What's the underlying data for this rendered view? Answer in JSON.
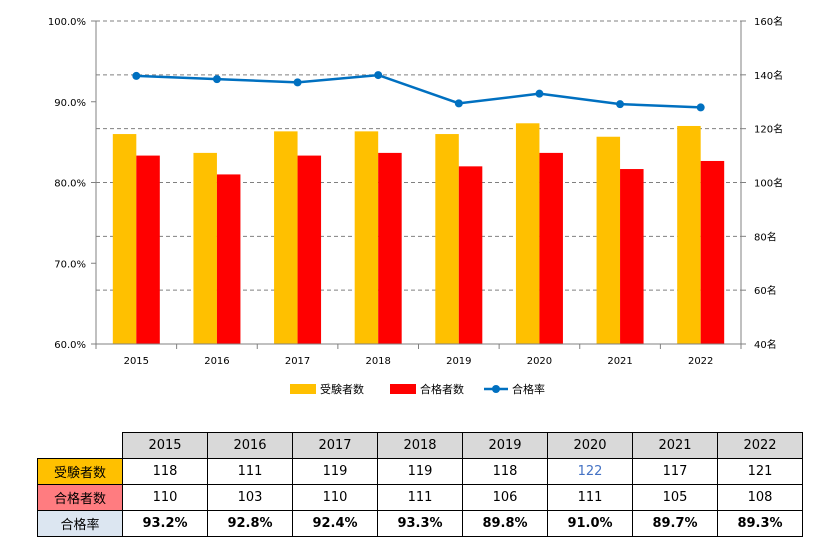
{
  "chart_data": {
    "type": "bar",
    "categories": [
      "2015",
      "2016",
      "2017",
      "2018",
      "2019",
      "2020",
      "2021",
      "2022"
    ],
    "series": [
      {
        "name": "受験者数",
        "type": "bar",
        "axis": "right",
        "color": "#ffc000",
        "values": [
          118,
          111,
          119,
          119,
          118,
          122,
          117,
          121
        ]
      },
      {
        "name": "合格者数",
        "type": "bar",
        "axis": "right",
        "color": "#ff0000",
        "values": [
          110,
          103,
          110,
          111,
          106,
          111,
          105,
          108
        ]
      },
      {
        "name": "合格率",
        "type": "line",
        "axis": "left",
        "color": "#0070c0",
        "values": [
          93.2,
          92.8,
          92.4,
          93.3,
          89.8,
          91.0,
          89.7,
          89.3
        ]
      }
    ],
    "y_left": {
      "range": [
        60,
        100
      ],
      "ticks": [
        "60.0%",
        "70.0%",
        "80.0%",
        "90.0%",
        "100.0%"
      ]
    },
    "y_right": {
      "range": [
        40,
        160
      ],
      "ticks": [
        "40名",
        "60名",
        "80名",
        "100名",
        "120名",
        "140名",
        "160名"
      ]
    },
    "gridlines": true,
    "legend_position": "bottom"
  },
  "table": {
    "headers": [
      "2015",
      "2016",
      "2017",
      "2018",
      "2019",
      "2020",
      "2021",
      "2022"
    ],
    "rows": [
      {
        "label": "受験者数",
        "cls": "row-exam",
        "values": [
          "118",
          "111",
          "119",
          "119",
          "118",
          "122",
          "117",
          "121"
        ]
      },
      {
        "label": "合格者数",
        "cls": "row-pass",
        "values": [
          "110",
          "103",
          "110",
          "111",
          "106",
          "111",
          "105",
          "108"
        ]
      },
      {
        "label": "合格率",
        "cls": "row-rate",
        "values": [
          "93.2%",
          "92.8%",
          "92.4%",
          "93.3%",
          "89.8%",
          "91.0%",
          "89.7%",
          "89.3%"
        ]
      }
    ]
  }
}
